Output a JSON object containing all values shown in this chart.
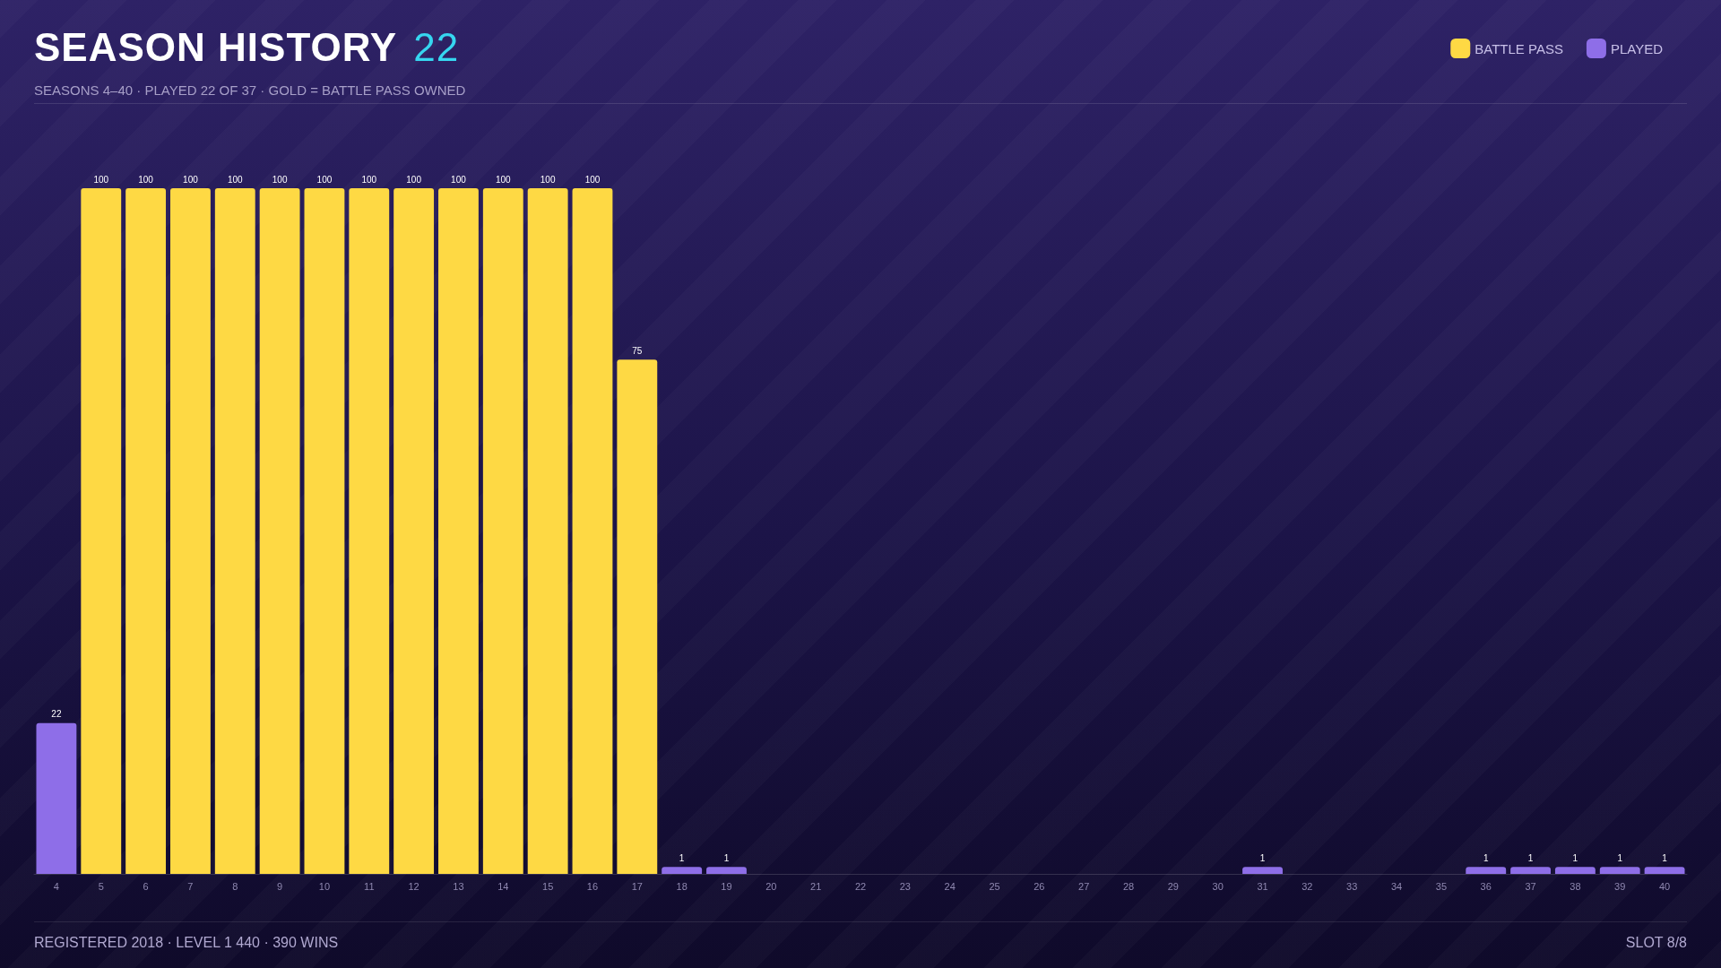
{
  "chart_data": {
    "type": "bar",
    "title": "SEASON HISTORY",
    "subtitle": "SEASONS 4–40 · PLAYED 22 OF 37 · GOLD = BATTLE PASS OWNED",
    "annotations": [
      "22",
      "REGISTERED 2018 · LEVEL 1 440 · 390 WINS",
      "SLOT 8/8"
    ],
    "categories": [
      "4",
      "5",
      "6",
      "7",
      "8",
      "9",
      "10",
      "11",
      "12",
      "13",
      "14",
      "15",
      "16",
      "17",
      "18",
      "19",
      "20",
      "21",
      "22",
      "23",
      "24",
      "25",
      "26",
      "27",
      "28",
      "29",
      "30",
      "31",
      "32",
      "33",
      "34",
      "35",
      "36",
      "37",
      "38",
      "39",
      "40"
    ],
    "stacked": true,
    "data_labels": true,
    "legend": "top right",
    "grid": false,
    "series": [
      {
        "name": "BATTLE PASS",
        "color": "#fed944",
        "values": [
          null,
          100,
          100,
          100,
          100,
          100,
          100,
          100,
          100,
          100,
          100,
          100,
          100,
          75,
          null,
          null,
          null,
          null,
          null,
          null,
          null,
          null,
          null,
          null,
          null,
          null,
          null,
          null,
          null,
          null,
          null,
          null,
          null,
          null,
          null,
          null,
          null
        ]
      },
      {
        "name": "PLAYED",
        "color": "#8e6ee8",
        "values": [
          22,
          null,
          null,
          null,
          null,
          null,
          null,
          null,
          null,
          null,
          null,
          null,
          null,
          null,
          1,
          1,
          null,
          null,
          null,
          null,
          null,
          null,
          null,
          null,
          null,
          null,
          null,
          1,
          null,
          null,
          null,
          null,
          1,
          1,
          1,
          1,
          1
        ]
      }
    ]
  }
}
